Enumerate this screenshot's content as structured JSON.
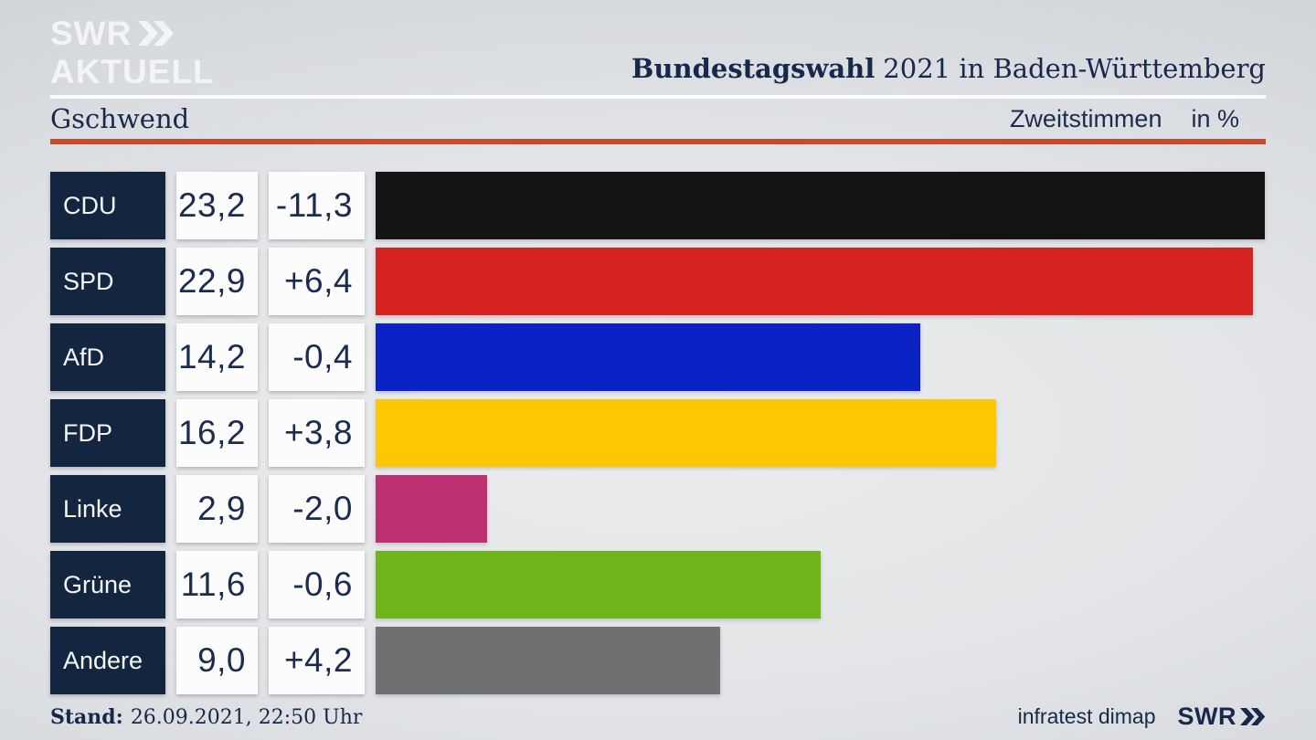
{
  "header": {
    "logo_line1": "SWR",
    "logo_line2": "AKTUELL",
    "title_bold": "Bundestagswahl",
    "title_rest": "2021 in Baden-Württemberg",
    "region": "Gschwend",
    "vote_type": "Zweitstimmen",
    "unit": "in %"
  },
  "footer": {
    "stand_label": "Stand:",
    "stand_value": "26.09.2021, 22:50 Uhr",
    "source": "infratest dimap",
    "logo": "SWR"
  },
  "colors": {
    "navy_box": "#14263f",
    "navy_text": "#1b2c4e",
    "accent_rule_red": "#c54b2d",
    "white_rule": "#fbfcfd"
  },
  "chart_data": {
    "type": "bar",
    "orientation": "horizontal",
    "title": "Bundestagswahl 2021 in Baden-Württemberg – Gschwend – Zweitstimmen in %",
    "unit": "%",
    "categories": [
      "CDU",
      "SPD",
      "AfD",
      "FDP",
      "Linke",
      "Grüne",
      "Andere"
    ],
    "values": [
      23.2,
      22.9,
      14.2,
      16.2,
      2.9,
      11.6,
      9.0
    ],
    "changes": [
      -11.3,
      6.4,
      -0.4,
      3.8,
      -2.0,
      -0.6,
      4.2
    ],
    "value_labels": [
      "23,2",
      "22,9",
      "14,2",
      "16,2",
      "2,9",
      "11,6",
      "9,0"
    ],
    "change_labels": [
      "-11,3",
      "+6,4",
      "-0,4",
      "+3,8",
      "-2,0",
      "-0,6",
      "+4,2"
    ],
    "bar_colors": [
      "#141414",
      "#d52322",
      "#0b23c5",
      "#fdc704",
      "#bd3173",
      "#70b41c",
      "#6e7072"
    ],
    "xlim": [
      0,
      23.2
    ],
    "legend": "none",
    "grid": false
  }
}
